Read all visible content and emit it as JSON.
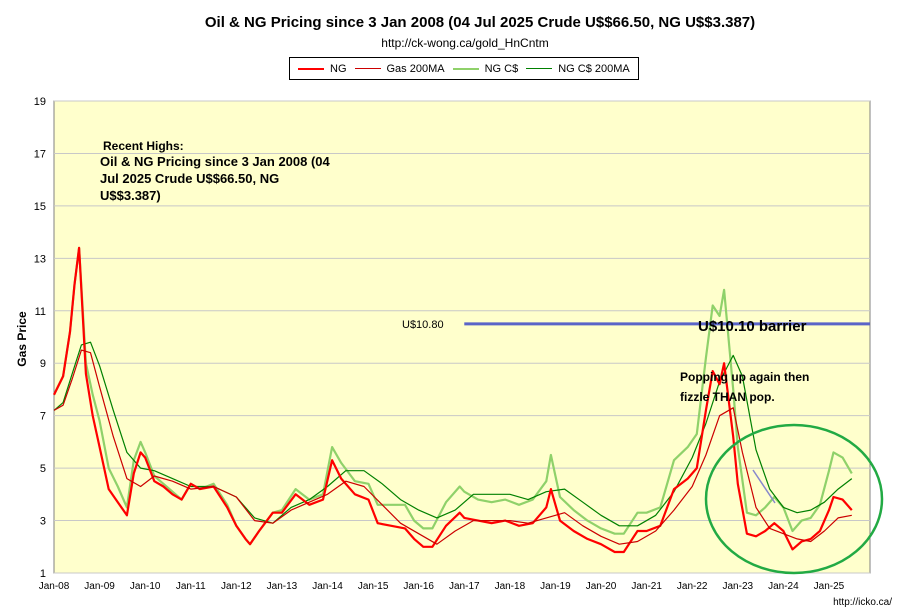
{
  "title": "Oil & NG Pricing since 3 Jan 2008  (04 Jul 2025 Crude U$$66.50, NG U$$3.387)",
  "subtitle": "http://ck-wong.ca/gold_HnCntm",
  "footer": "http://icko.ca/",
  "legend": [
    {
      "label": "NG",
      "color": "#ff0000",
      "width": 2
    },
    {
      "label": "Gas 200MA",
      "color": "#cc0000",
      "width": 1
    },
    {
      "label": "NG C$",
      "color": "#8fd16a",
      "width": 2
    },
    {
      "label": "NG C$ 200MA",
      "color": "#008000",
      "width": 1
    }
  ],
  "annotations": {
    "recent_highs": "Recent Highs:",
    "recent_highs_body_1": "Oil & NG Pricing since 3 Jan 2008  (04",
    "recent_highs_body_2": "Jul 2025 Crude U$$66.50, NG",
    "recent_highs_body_3": "U$$3.387)",
    "barrier_left": "U$10.80",
    "barrier_right": "U$10.10 barrier",
    "popping_1": "Popping up again then",
    "popping_2": "fizzle THAN pop."
  },
  "colors": {
    "plot_bg": "#ffffcc",
    "grid": "#c8c8c8",
    "barrier": "#5a64c8",
    "circle": "#22aa44",
    "arrow": "#8888cc"
  },
  "chart_data": {
    "type": "line",
    "ylabel": "Gas Price",
    "ylim": [
      1,
      19
    ],
    "yticks": [
      1,
      3,
      5,
      7,
      9,
      11,
      13,
      15,
      17,
      19
    ],
    "xlim": [
      2008.0,
      2025.9
    ],
    "xtick_labels": [
      "Jan-08",
      "Jan-09",
      "Jan-10",
      "Jan-11",
      "Jan-12",
      "Jan-13",
      "Jan-14",
      "Jan-15",
      "Jan-16",
      "Jan-17",
      "Jan-18",
      "Jan-19",
      "Jan-20",
      "Jan-21",
      "Jan-22",
      "Jan-23",
      "Jan-24",
      "Jan-25"
    ],
    "barrier_level": 10.5,
    "barrier_x": [
      2017.0,
      2025.9
    ],
    "series": [
      {
        "name": "NG",
        "x": [
          2008.0,
          2008.2,
          2008.35,
          2008.45,
          2008.55,
          2008.7,
          2008.85,
          2009.0,
          2009.2,
          2009.4,
          2009.6,
          2009.75,
          2009.9,
          2010.0,
          2010.2,
          2010.4,
          2010.6,
          2010.8,
          2011.0,
          2011.2,
          2011.5,
          2011.8,
          2012.0,
          2012.2,
          2012.3,
          2012.5,
          2012.8,
          2013.0,
          2013.3,
          2013.6,
          2013.9,
          2014.1,
          2014.3,
          2014.6,
          2014.9,
          2015.1,
          2015.4,
          2015.7,
          2015.9,
          2016.1,
          2016.3,
          2016.6,
          2016.9,
          2017.0,
          2017.3,
          2017.6,
          2017.9,
          2018.2,
          2018.5,
          2018.8,
          2018.9,
          2019.1,
          2019.4,
          2019.7,
          2020.0,
          2020.3,
          2020.5,
          2020.8,
          2021.0,
          2021.3,
          2021.6,
          2021.9,
          2022.1,
          2022.3,
          2022.45,
          2022.6,
          2022.7,
          2022.9,
          2023.0,
          2023.2,
          2023.4,
          2023.6,
          2023.8,
          2024.0,
          2024.2,
          2024.4,
          2024.6,
          2024.8,
          2025.0,
          2025.1,
          2025.3,
          2025.5
        ],
        "y": [
          7.8,
          8.5,
          10.2,
          12.0,
          13.4,
          8.6,
          7.0,
          5.8,
          4.2,
          3.7,
          3.2,
          4.8,
          5.6,
          5.4,
          4.5,
          4.3,
          4.0,
          3.8,
          4.4,
          4.2,
          4.3,
          3.5,
          2.8,
          2.3,
          2.1,
          2.6,
          3.3,
          3.3,
          4.0,
          3.6,
          3.8,
          5.3,
          4.6,
          4.0,
          3.8,
          2.9,
          2.8,
          2.7,
          2.3,
          2.0,
          2.0,
          2.8,
          3.3,
          3.1,
          3.0,
          2.9,
          3.0,
          2.8,
          2.9,
          3.5,
          4.2,
          3.0,
          2.6,
          2.3,
          2.1,
          1.8,
          1.8,
          2.6,
          2.6,
          2.8,
          4.2,
          4.6,
          5.0,
          7.2,
          8.7,
          8.2,
          9.0,
          6.2,
          4.4,
          2.5,
          2.4,
          2.6,
          2.9,
          2.6,
          1.9,
          2.2,
          2.3,
          2.6,
          3.4,
          3.9,
          3.8,
          3.4
        ]
      },
      {
        "name": "NG C$",
        "x": [
          2008.0,
          2008.2,
          2008.35,
          2008.45,
          2008.55,
          2008.7,
          2008.85,
          2009.0,
          2009.2,
          2009.4,
          2009.6,
          2009.75,
          2009.9,
          2010.0,
          2010.2,
          2010.4,
          2010.6,
          2010.8,
          2011.0,
          2011.2,
          2011.5,
          2011.8,
          2012.0,
          2012.2,
          2012.3,
          2012.5,
          2012.8,
          2013.0,
          2013.3,
          2013.6,
          2013.9,
          2014.1,
          2014.3,
          2014.6,
          2014.9,
          2015.1,
          2015.4,
          2015.7,
          2015.9,
          2016.1,
          2016.3,
          2016.6,
          2016.9,
          2017.0,
          2017.3,
          2017.6,
          2017.9,
          2018.2,
          2018.5,
          2018.8,
          2018.9,
          2019.1,
          2019.4,
          2019.7,
          2020.0,
          2020.3,
          2020.5,
          2020.8,
          2021.0,
          2021.3,
          2021.6,
          2021.9,
          2022.1,
          2022.3,
          2022.45,
          2022.6,
          2022.7,
          2022.9,
          2023.0,
          2023.2,
          2023.4,
          2023.6,
          2023.8,
          2024.0,
          2024.2,
          2024.4,
          2024.6,
          2024.8,
          2025.0,
          2025.1,
          2025.3,
          2025.5
        ],
        "y": [
          7.8,
          8.5,
          10.2,
          12.0,
          13.4,
          9.0,
          7.8,
          6.8,
          5.0,
          4.3,
          3.5,
          5.3,
          6.0,
          5.6,
          4.7,
          4.4,
          4.1,
          3.8,
          4.4,
          4.2,
          4.4,
          3.6,
          2.8,
          2.3,
          2.1,
          2.6,
          3.3,
          3.4,
          4.2,
          3.8,
          4.0,
          5.8,
          5.2,
          4.5,
          4.4,
          3.6,
          3.6,
          3.6,
          3.0,
          2.7,
          2.7,
          3.7,
          4.3,
          4.1,
          3.8,
          3.7,
          3.8,
          3.6,
          3.8,
          4.5,
          5.5,
          3.9,
          3.4,
          3.0,
          2.7,
          2.5,
          2.5,
          3.3,
          3.3,
          3.5,
          5.3,
          5.8,
          6.3,
          9.2,
          11.2,
          10.8,
          11.8,
          8.0,
          5.8,
          3.3,
          3.2,
          3.5,
          3.9,
          3.5,
          2.6,
          3.0,
          3.1,
          3.6,
          4.9,
          5.6,
          5.4,
          4.8
        ]
      },
      {
        "name": "Gas 200MA",
        "x": [
          2008.0,
          2008.2,
          2008.4,
          2008.6,
          2008.8,
          2009.0,
          2009.3,
          2009.6,
          2009.9,
          2010.2,
          2010.6,
          2011.0,
          2011.5,
          2012.0,
          2012.4,
          2012.8,
          2013.2,
          2013.6,
          2014.0,
          2014.4,
          2014.8,
          2015.2,
          2015.6,
          2016.0,
          2016.4,
          2016.8,
          2017.2,
          2017.6,
          2018.0,
          2018.4,
          2018.8,
          2019.2,
          2019.6,
          2020.0,
          2020.4,
          2020.8,
          2021.2,
          2021.6,
          2022.0,
          2022.3,
          2022.6,
          2022.9,
          2023.1,
          2023.4,
          2023.7,
          2024.0,
          2024.3,
          2024.6,
          2024.9,
          2025.2,
          2025.5
        ],
        "y": [
          7.2,
          7.4,
          8.4,
          9.5,
          9.4,
          8.1,
          6.2,
          4.6,
          4.3,
          4.7,
          4.5,
          4.2,
          4.3,
          3.9,
          3.0,
          2.9,
          3.4,
          3.7,
          4.0,
          4.5,
          4.3,
          3.6,
          2.9,
          2.5,
          2.1,
          2.6,
          3.0,
          3.0,
          3.0,
          2.9,
          3.1,
          3.3,
          2.8,
          2.4,
          2.1,
          2.2,
          2.6,
          3.4,
          4.3,
          5.5,
          7.0,
          7.3,
          5.6,
          3.5,
          2.7,
          2.5,
          2.3,
          2.2,
          2.6,
          3.1,
          3.2
        ]
      },
      {
        "name": "NG C$ 200MA",
        "x": [
          2008.0,
          2008.2,
          2008.4,
          2008.6,
          2008.8,
          2009.0,
          2009.3,
          2009.6,
          2009.9,
          2010.2,
          2010.6,
          2011.0,
          2011.5,
          2012.0,
          2012.4,
          2012.8,
          2013.2,
          2013.6,
          2014.0,
          2014.4,
          2014.8,
          2015.2,
          2015.6,
          2016.0,
          2016.4,
          2016.8,
          2017.2,
          2017.6,
          2018.0,
          2018.4,
          2018.8,
          2019.2,
          2019.6,
          2020.0,
          2020.4,
          2020.8,
          2021.2,
          2021.6,
          2022.0,
          2022.3,
          2022.6,
          2022.9,
          2023.1,
          2023.4,
          2023.7,
          2024.0,
          2024.3,
          2024.6,
          2024.9,
          2025.2,
          2025.5
        ],
        "y": [
          7.2,
          7.5,
          8.6,
          9.7,
          9.8,
          8.9,
          7.2,
          5.6,
          5.0,
          4.9,
          4.6,
          4.3,
          4.3,
          3.9,
          3.1,
          2.9,
          3.5,
          3.8,
          4.3,
          4.9,
          4.9,
          4.4,
          3.8,
          3.4,
          3.1,
          3.4,
          4.0,
          4.0,
          4.0,
          3.8,
          4.1,
          4.2,
          3.7,
          3.2,
          2.8,
          2.8,
          3.2,
          4.1,
          5.4,
          6.7,
          8.3,
          9.3,
          8.5,
          5.7,
          4.2,
          3.5,
          3.3,
          3.4,
          3.7,
          4.2,
          4.6
        ]
      }
    ]
  }
}
